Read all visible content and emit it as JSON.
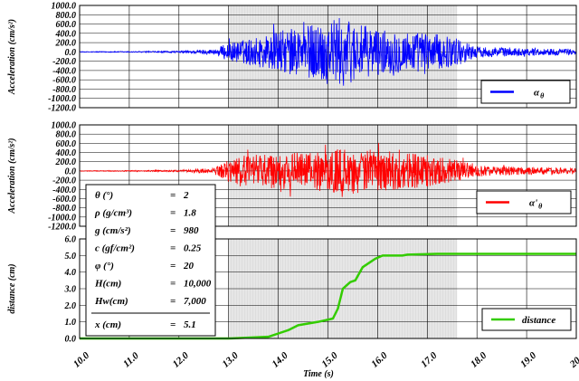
{
  "chart_data": {
    "type": "line",
    "x_label": "Time (s)",
    "x_ticks": [
      "10.0",
      "11.0",
      "12.0",
      "13.0",
      "14.0",
      "15.0",
      "16.0",
      "17.0",
      "18.0",
      "19.0",
      "20.0"
    ],
    "xlim": [
      10.0,
      20.0
    ],
    "shaded_interval": [
      13.0,
      17.6
    ],
    "panels": [
      {
        "id": "a_theta",
        "y_label": "Acceleration (cm/s²)",
        "y_ticks": [
          "1000.0",
          "800.0",
          "600.0",
          "400.0",
          "200.0",
          "0.0",
          "-200.0",
          "-400.0",
          "-600.0",
          "-800.0",
          "-1000.0",
          "-1200.0"
        ],
        "ylim": [
          -1200,
          1000
        ],
        "color": "#0000ff",
        "legend": "α θ",
        "legend_main": "α",
        "legend_sub": "θ",
        "envelope": [
          [
            10.0,
            8
          ],
          [
            11.0,
            10
          ],
          [
            12.0,
            20
          ],
          [
            12.7,
            60
          ],
          [
            13.0,
            200
          ],
          [
            13.5,
            300
          ],
          [
            14.0,
            450
          ],
          [
            14.5,
            550
          ],
          [
            15.0,
            700
          ],
          [
            15.3,
            750
          ],
          [
            15.6,
            600
          ],
          [
            16.0,
            500
          ],
          [
            16.5,
            450
          ],
          [
            17.0,
            420
          ],
          [
            17.6,
            300
          ],
          [
            18.0,
            120
          ],
          [
            19.0,
            80
          ],
          [
            20.0,
            60
          ]
        ]
      },
      {
        "id": "a_theta_prime",
        "y_label": "Acceleration (cm/s²)",
        "y_ticks": [
          "1000.0",
          "800.0",
          "600.0",
          "400.0",
          "200.0",
          "0.0",
          "-200.0",
          "-400.0",
          "-600.0",
          "-800.0",
          "-1000.0",
          "-1200.0"
        ],
        "ylim": [
          -1200,
          1000
        ],
        "color": "#ff0000",
        "legend": "α' θ",
        "legend_main": "α'",
        "legend_sub": "θ",
        "envelope": [
          [
            10.0,
            8
          ],
          [
            11.0,
            10
          ],
          [
            12.0,
            20
          ],
          [
            12.7,
            60
          ],
          [
            13.0,
            250
          ],
          [
            13.5,
            350
          ],
          [
            14.0,
            400
          ],
          [
            14.5,
            400
          ],
          [
            15.0,
            450
          ],
          [
            15.5,
            500
          ],
          [
            16.0,
            450
          ],
          [
            16.5,
            400
          ],
          [
            17.0,
            350
          ],
          [
            17.6,
            250
          ],
          [
            18.0,
            120
          ],
          [
            19.0,
            80
          ],
          [
            20.0,
            60
          ]
        ]
      },
      {
        "id": "distance",
        "y_label": "distance (cm)",
        "y_ticks": [
          "6.0",
          "5.0",
          "4.0",
          "3.0",
          "2.0",
          "1.0",
          "0.0"
        ],
        "ylim": [
          0,
          6
        ],
        "color": "#33cc00",
        "legend": "distance",
        "series_points": [
          [
            10.0,
            0.0
          ],
          [
            13.0,
            0.0
          ],
          [
            13.8,
            0.1
          ],
          [
            14.0,
            0.3
          ],
          [
            14.2,
            0.5
          ],
          [
            14.4,
            0.8
          ],
          [
            14.6,
            0.9
          ],
          [
            14.8,
            1.0
          ],
          [
            15.1,
            1.2
          ],
          [
            15.2,
            1.8
          ],
          [
            15.3,
            3.0
          ],
          [
            15.45,
            3.4
          ],
          [
            15.55,
            3.5
          ],
          [
            15.7,
            4.3
          ],
          [
            15.85,
            4.6
          ],
          [
            15.95,
            4.8
          ],
          [
            16.1,
            5.0
          ],
          [
            16.5,
            5.0
          ],
          [
            16.6,
            5.05
          ],
          [
            17.2,
            5.1
          ],
          [
            20.0,
            5.1
          ]
        ]
      }
    ],
    "parameters": [
      {
        "label": "θ (°)",
        "eq": "=",
        "value": "2"
      },
      {
        "label": "ρ (g/cm³)",
        "eq": "=",
        "value": "1.8"
      },
      {
        "label": "g (cm/s²)",
        "eq": "=",
        "value": "980"
      },
      {
        "label": "c (gf/cm²)",
        "eq": "=",
        "value": "0.25"
      },
      {
        "label": "φ (°)",
        "eq": "=",
        "value": "20"
      },
      {
        "label": "H(cm)",
        "eq": "=",
        "value": "10,000"
      },
      {
        "label": "Hw(cm)",
        "eq": "=",
        "value": "7,000"
      }
    ],
    "result": {
      "label": "x (cm)",
      "eq": "=",
      "value": "5.1"
    }
  }
}
